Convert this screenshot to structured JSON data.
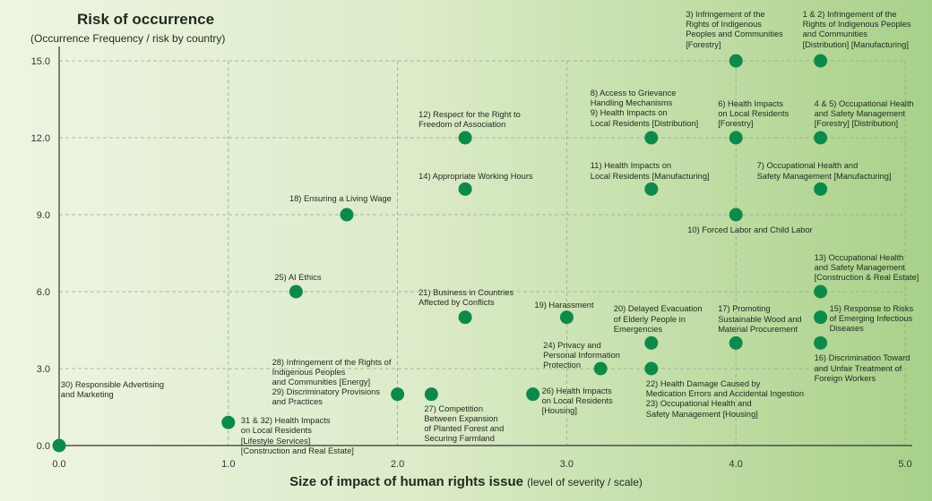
{
  "chart_data": {
    "type": "scatter",
    "title": "Risk of occurrence",
    "subtitle": "(Occurrence Frequency / risk by country)",
    "xlabel": "Size of impact of human rights issue",
    "xlabel_note": "(level of severity / scale)",
    "xlim": [
      0,
      5
    ],
    "ylim": [
      0,
      15
    ],
    "x_ticks": [
      "0.0",
      "1.0",
      "2.0",
      "3.0",
      "4.0",
      "5.0"
    ],
    "y_ticks": [
      "0.0",
      "3.0",
      "6.0",
      "9.0",
      "12.0",
      "15.0"
    ],
    "grid": true,
    "point_color": "#0d8a4a",
    "points": [
      {
        "x": 0.0,
        "y": 0.0,
        "label": ""
      },
      {
        "x": 1.0,
        "y": 0.9,
        "label": "30) Responsible Advertising\nand Marketing"
      },
      {
        "x": 1.0,
        "y": 0.9,
        "label": "31 & 32) Health Impacts\non Local Residents\n[Lifestyle Services]\n[Construction and Real Estate]"
      },
      {
        "x": 1.4,
        "y": 6.0,
        "label": "25) AI Ethics"
      },
      {
        "x": 1.7,
        "y": 9.0,
        "label": "18) Ensuring a Living Wage"
      },
      {
        "x": 2.0,
        "y": 2.0,
        "label": "28) Infringement of the Rights of\nIndigenous Peoples\nand Communities [Energy]\n29) Discriminatory Provisions\nand Practices"
      },
      {
        "x": 2.2,
        "y": 2.0,
        "label": "27) Competition\nBetween Expansion\nof Planted Forest and\nSecuring Farmland"
      },
      {
        "x": 2.4,
        "y": 12.0,
        "label": "12) Respect for the Right to\nFreedom of Association"
      },
      {
        "x": 2.4,
        "y": 10.0,
        "label": "14) Appropriate Working Hours"
      },
      {
        "x": 2.4,
        "y": 5.0,
        "label": "21) Business in Countries\nAffected by Conflicts"
      },
      {
        "x": 2.8,
        "y": 2.0,
        "label": "26) Health Impacts\non Local Residents\n[Housing]"
      },
      {
        "x": 3.0,
        "y": 5.0,
        "label": "19) Harassment"
      },
      {
        "x": 3.2,
        "y": 3.0,
        "label": "24) Privacy and\nPersonal Information\nProtection"
      },
      {
        "x": 3.5,
        "y": 12.0,
        "label": "8) Access to Grievance\nHandling Mechanisms\n9) Health Impacts on\nLocal Residents [Distribution]"
      },
      {
        "x": 3.5,
        "y": 10.0,
        "label": "11) Health Impacts on\nLocal Residents [Manufacturing]"
      },
      {
        "x": 3.5,
        "y": 4.0,
        "label": "20) Delayed Evacuation\nof Elderly People in\nEmergencies"
      },
      {
        "x": 3.5,
        "y": 3.0,
        "label": "22) Health Damage Caused by\nMedication Errors and Accidental Ingestion\n23) Occupational Health and\nSafety Management [Housing]"
      },
      {
        "x": 4.0,
        "y": 15.0,
        "label": "3) Infringement of the\nRights of Indigenous\nPeoples and Communities\n[Forestry]"
      },
      {
        "x": 4.0,
        "y": 12.0,
        "label": "6) Health Impacts\non Local Residents\n[Forestry]"
      },
      {
        "x": 4.0,
        "y": 9.0,
        "label": "10) Forced Labor and Child Labor"
      },
      {
        "x": 4.0,
        "y": 4.0,
        "label": "17) Promoting\nSustainable Wood and\nMaterial Procurement"
      },
      {
        "x": 4.5,
        "y": 15.0,
        "label": "1 & 2) Infringement of the\nRights of Indigenous Peoples\nand Communities\n[Distribution] [Manufacturing]"
      },
      {
        "x": 4.5,
        "y": 12.0,
        "label": "4 & 5) Occupational Health\nand Safety Management\n[Forestry] [Distribution]"
      },
      {
        "x": 4.5,
        "y": 10.0,
        "label": "7) Occupational Health and\nSafety Management [Manufacturing]"
      },
      {
        "x": 4.5,
        "y": 6.0,
        "label": "13) Occupational Health\nand Safety Management\n[Construction & Real Estate]"
      },
      {
        "x": 4.5,
        "y": 5.0,
        "label": "15) Response to Risks\nof Emerging Infectious\nDiseases"
      },
      {
        "x": 4.5,
        "y": 4.0,
        "label": "16) Discrimination Toward\nand Unfair Treatment of\nForeign Workers"
      }
    ]
  }
}
